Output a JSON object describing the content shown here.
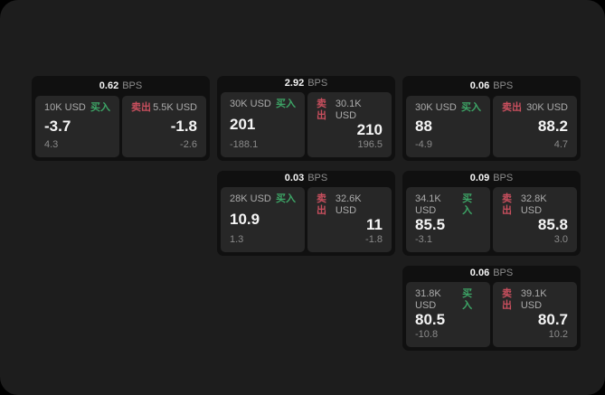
{
  "labels": {
    "bps": "BPS",
    "buy": "买入",
    "sell": "卖出"
  },
  "colors": {
    "buy": "#3da566",
    "sell": "#c94f5e",
    "surface": "#1d1d1d",
    "card": "#101010",
    "panel": "#272727"
  },
  "cards": [
    {
      "row": 1,
      "col": 1,
      "bps": "0.62",
      "buy": {
        "amount": "10K USD",
        "value": "-3.7",
        "sub": "4.3"
      },
      "sell": {
        "amount": "5.5K USD",
        "value": "-1.8",
        "sub": "-2.6"
      }
    },
    {
      "row": 1,
      "col": 2,
      "bps": "2.92",
      "buy": {
        "amount": "30K USD",
        "value": "201",
        "sub": "-188.1"
      },
      "sell": {
        "amount": "30.1K USD",
        "value": "210",
        "sub": "196.5"
      }
    },
    {
      "row": 1,
      "col": 3,
      "bps": "0.06",
      "buy": {
        "amount": "30K USD",
        "value": "88",
        "sub": "-4.9"
      },
      "sell": {
        "amount": "30K USD",
        "value": "88.2",
        "sub": "4.7"
      }
    },
    {
      "row": 2,
      "col": 2,
      "bps": "0.03",
      "buy": {
        "amount": "28K USD",
        "value": "10.9",
        "sub": "1.3"
      },
      "sell": {
        "amount": "32.6K USD",
        "value": "11",
        "sub": "-1.8"
      }
    },
    {
      "row": 2,
      "col": 3,
      "bps": "0.09",
      "buy": {
        "amount": "34.1K USD",
        "value": "85.5",
        "sub": "-3.1"
      },
      "sell": {
        "amount": "32.8K USD",
        "value": "85.8",
        "sub": "3.0"
      }
    },
    {
      "row": 3,
      "col": 3,
      "bps": "0.06",
      "buy": {
        "amount": "31.8K USD",
        "value": "80.5",
        "sub": "-10.8"
      },
      "sell": {
        "amount": "39.1K USD",
        "value": "80.7",
        "sub": "10.2"
      }
    }
  ]
}
